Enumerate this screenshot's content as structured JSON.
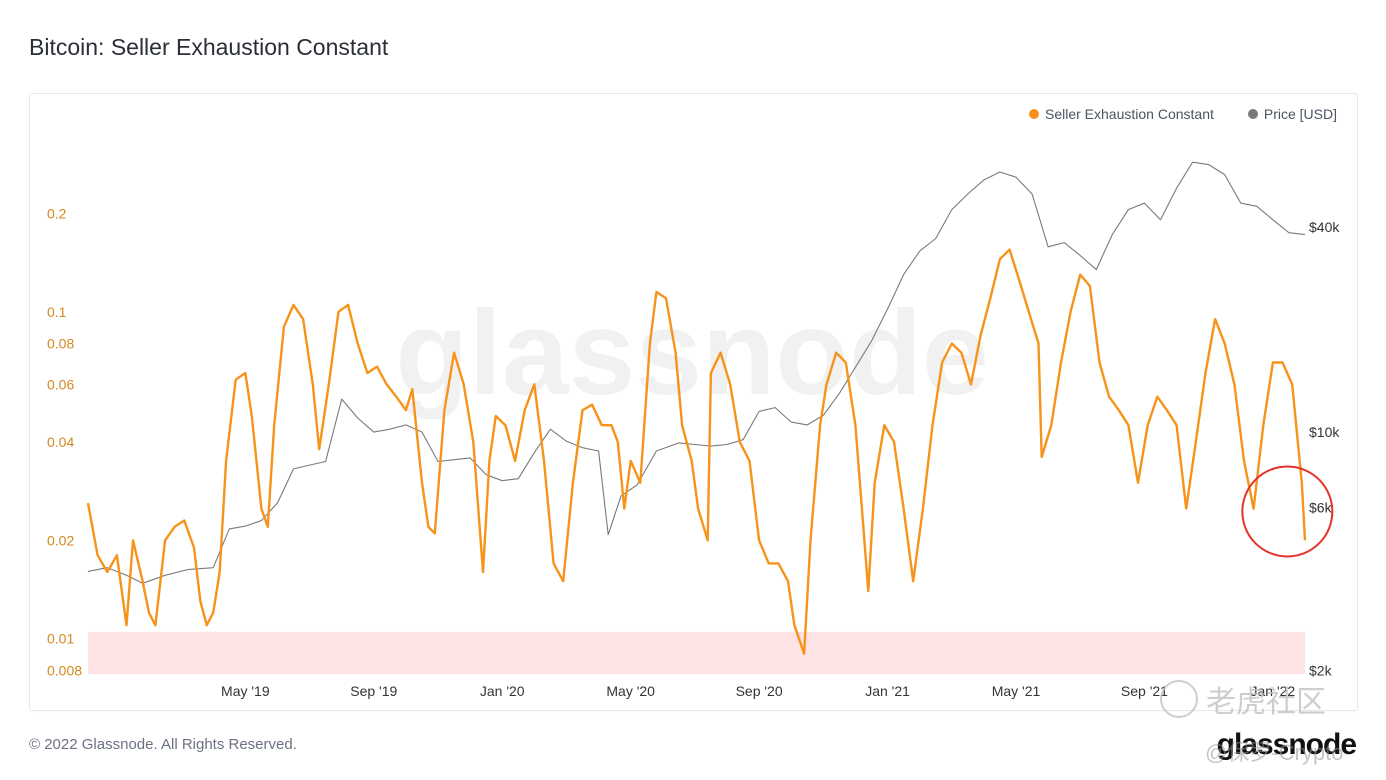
{
  "page": {
    "title": "Bitcoin: Seller Exhaustion Constant",
    "copyright": "© 2022 Glassnode. All Rights Reserved.",
    "brand": "glassnode",
    "watermark_text": "老虎社区",
    "handle_text": "@保罗-Crypto"
  },
  "legend": [
    {
      "label": "Seller Exhaustion Constant",
      "color": "#f7931a"
    },
    {
      "label": "Price [USD]",
      "color": "#7a7a7a"
    }
  ],
  "chart_data": {
    "type": "line",
    "title": "Bitcoin: Seller Exhaustion Constant",
    "x_tick_labels": [
      "May '19",
      "Sep '19",
      "Jan '20",
      "May '20",
      "Sep '20",
      "Jan '21",
      "May '21",
      "Sep '21",
      "Jan '22"
    ],
    "x_tick_months": [
      4,
      8,
      12,
      16,
      20,
      24,
      28,
      32,
      36
    ],
    "x_range_months": [
      -0.9,
      37.0
    ],
    "left_axis": {
      "scale": "log",
      "tick_labels": [
        "0.2",
        "0.1",
        "0.08",
        "0.06",
        "0.04",
        "0.02",
        "0.01",
        "0.008"
      ],
      "tick_values": [
        0.2,
        0.1,
        0.08,
        0.06,
        0.04,
        0.02,
        0.01,
        0.008
      ],
      "range": [
        0.0078,
        0.35
      ],
      "color": "#d4891e"
    },
    "right_axis": {
      "scale": "log",
      "tick_labels": [
        "$40k",
        "$10k",
        "$6k",
        "$2k"
      ],
      "tick_values": [
        40000,
        10000,
        6000,
        2000
      ],
      "range": [
        1950,
        75000
      ],
      "color": "#333333"
    },
    "watermark_text": "glassnode",
    "highlight_band": {
      "from": 0.0078,
      "to": 0.0105,
      "color": "#fde3e3"
    },
    "annotation": {
      "type": "circle",
      "x_month": 36.45,
      "y_value": 0.0245,
      "color": "#e5332a"
    },
    "series": [
      {
        "name": "Seller Exhaustion Constant",
        "axis": "left",
        "color": "#f7931a",
        "points": [
          [
            -0.9,
            0.026
          ],
          [
            -0.6,
            0.018
          ],
          [
            -0.3,
            0.016
          ],
          [
            0.0,
            0.018
          ],
          [
            0.3,
            0.011
          ],
          [
            0.5,
            0.02
          ],
          [
            0.8,
            0.015
          ],
          [
            1.0,
            0.012
          ],
          [
            1.2,
            0.011
          ],
          [
            1.5,
            0.02
          ],
          [
            1.8,
            0.022
          ],
          [
            2.1,
            0.023
          ],
          [
            2.4,
            0.019
          ],
          [
            2.6,
            0.013
          ],
          [
            2.8,
            0.011
          ],
          [
            3.0,
            0.012
          ],
          [
            3.2,
            0.016
          ],
          [
            3.4,
            0.035
          ],
          [
            3.7,
            0.062
          ],
          [
            4.0,
            0.065
          ],
          [
            4.2,
            0.048
          ],
          [
            4.5,
            0.025
          ],
          [
            4.7,
            0.022
          ],
          [
            4.9,
            0.045
          ],
          [
            5.2,
            0.09
          ],
          [
            5.5,
            0.105
          ],
          [
            5.8,
            0.095
          ],
          [
            6.1,
            0.06
          ],
          [
            6.3,
            0.038
          ],
          [
            6.6,
            0.06
          ],
          [
            6.9,
            0.1
          ],
          [
            7.2,
            0.105
          ],
          [
            7.5,
            0.08
          ],
          [
            7.8,
            0.065
          ],
          [
            8.1,
            0.068
          ],
          [
            8.4,
            0.06
          ],
          [
            8.7,
            0.055
          ],
          [
            9.0,
            0.05
          ],
          [
            9.2,
            0.058
          ],
          [
            9.5,
            0.03
          ],
          [
            9.7,
            0.022
          ],
          [
            9.9,
            0.021
          ],
          [
            10.2,
            0.05
          ],
          [
            10.5,
            0.075
          ],
          [
            10.8,
            0.06
          ],
          [
            11.1,
            0.04
          ],
          [
            11.4,
            0.016
          ],
          [
            11.6,
            0.035
          ],
          [
            11.8,
            0.048
          ],
          [
            12.1,
            0.045
          ],
          [
            12.4,
            0.035
          ],
          [
            12.7,
            0.05
          ],
          [
            13.0,
            0.06
          ],
          [
            13.3,
            0.035
          ],
          [
            13.6,
            0.017
          ],
          [
            13.9,
            0.015
          ],
          [
            14.2,
            0.03
          ],
          [
            14.5,
            0.05
          ],
          [
            14.8,
            0.052
          ],
          [
            15.1,
            0.045
          ],
          [
            15.4,
            0.045
          ],
          [
            15.6,
            0.04
          ],
          [
            15.8,
            0.025
          ],
          [
            16.0,
            0.035
          ],
          [
            16.3,
            0.03
          ],
          [
            16.6,
            0.08
          ],
          [
            16.8,
            0.115
          ],
          [
            17.1,
            0.11
          ],
          [
            17.4,
            0.075
          ],
          [
            17.6,
            0.045
          ],
          [
            17.9,
            0.035
          ],
          [
            18.1,
            0.025
          ],
          [
            18.4,
            0.02
          ],
          [
            18.5,
            0.065
          ],
          [
            18.8,
            0.075
          ],
          [
            19.1,
            0.06
          ],
          [
            19.4,
            0.04
          ],
          [
            19.7,
            0.035
          ],
          [
            20.0,
            0.02
          ],
          [
            20.3,
            0.017
          ],
          [
            20.6,
            0.017
          ],
          [
            20.9,
            0.015
          ],
          [
            21.1,
            0.011
          ],
          [
            21.4,
            0.009
          ],
          [
            21.6,
            0.02
          ],
          [
            21.9,
            0.045
          ],
          [
            22.1,
            0.06
          ],
          [
            22.4,
            0.075
          ],
          [
            22.7,
            0.07
          ],
          [
            23.0,
            0.045
          ],
          [
            23.2,
            0.025
          ],
          [
            23.4,
            0.014
          ],
          [
            23.6,
            0.03
          ],
          [
            23.9,
            0.045
          ],
          [
            24.2,
            0.04
          ],
          [
            24.5,
            0.025
          ],
          [
            24.8,
            0.015
          ],
          [
            25.1,
            0.025
          ],
          [
            25.4,
            0.045
          ],
          [
            25.7,
            0.07
          ],
          [
            26.0,
            0.08
          ],
          [
            26.3,
            0.075
          ],
          [
            26.6,
            0.06
          ],
          [
            26.9,
            0.085
          ],
          [
            27.2,
            0.11
          ],
          [
            27.5,
            0.145
          ],
          [
            27.8,
            0.155
          ],
          [
            28.1,
            0.125
          ],
          [
            28.4,
            0.1
          ],
          [
            28.7,
            0.08
          ],
          [
            28.8,
            0.036
          ],
          [
            29.1,
            0.045
          ],
          [
            29.4,
            0.07
          ],
          [
            29.7,
            0.1
          ],
          [
            30.0,
            0.13
          ],
          [
            30.3,
            0.12
          ],
          [
            30.6,
            0.07
          ],
          [
            30.9,
            0.055
          ],
          [
            31.2,
            0.05
          ],
          [
            31.5,
            0.045
          ],
          [
            31.8,
            0.03
          ],
          [
            32.1,
            0.045
          ],
          [
            32.4,
            0.055
          ],
          [
            32.7,
            0.05
          ],
          [
            33.0,
            0.045
          ],
          [
            33.3,
            0.025
          ],
          [
            33.6,
            0.04
          ],
          [
            33.9,
            0.065
          ],
          [
            34.2,
            0.095
          ],
          [
            34.5,
            0.08
          ],
          [
            34.8,
            0.06
          ],
          [
            35.1,
            0.035
          ],
          [
            35.4,
            0.025
          ],
          [
            35.7,
            0.045
          ],
          [
            36.0,
            0.07
          ],
          [
            36.3,
            0.07
          ],
          [
            36.6,
            0.06
          ],
          [
            36.9,
            0.03
          ],
          [
            37.0,
            0.02
          ]
        ]
      },
      {
        "name": "Price [USD]",
        "axis": "right",
        "color": "#7a7a7a",
        "points": [
          [
            -0.9,
            3900
          ],
          [
            -0.3,
            4000
          ],
          [
            0.3,
            3800
          ],
          [
            0.8,
            3600
          ],
          [
            1.5,
            3800
          ],
          [
            2.2,
            3950
          ],
          [
            3.0,
            4000
          ],
          [
            3.5,
            5200
          ],
          [
            4.0,
            5300
          ],
          [
            4.5,
            5500
          ],
          [
            5.0,
            6200
          ],
          [
            5.5,
            7800
          ],
          [
            6.0,
            8000
          ],
          [
            6.5,
            8200
          ],
          [
            7.0,
            12500
          ],
          [
            7.5,
            11000
          ],
          [
            8.0,
            10000
          ],
          [
            8.5,
            10200
          ],
          [
            9.0,
            10500
          ],
          [
            9.5,
            10000
          ],
          [
            10.0,
            8200
          ],
          [
            10.5,
            8300
          ],
          [
            11.0,
            8400
          ],
          [
            11.5,
            7500
          ],
          [
            12.0,
            7200
          ],
          [
            12.5,
            7300
          ],
          [
            13.0,
            8700
          ],
          [
            13.5,
            10200
          ],
          [
            14.0,
            9400
          ],
          [
            14.5,
            9000
          ],
          [
            15.0,
            8800
          ],
          [
            15.3,
            5000
          ],
          [
            15.7,
            6500
          ],
          [
            16.2,
            7000
          ],
          [
            16.8,
            8800
          ],
          [
            17.5,
            9300
          ],
          [
            18.0,
            9200
          ],
          [
            18.5,
            9100
          ],
          [
            19.0,
            9200
          ],
          [
            19.5,
            9500
          ],
          [
            20.0,
            11500
          ],
          [
            20.5,
            11800
          ],
          [
            21.0,
            10700
          ],
          [
            21.5,
            10500
          ],
          [
            22.0,
            11200
          ],
          [
            22.5,
            13000
          ],
          [
            23.0,
            15500
          ],
          [
            23.5,
            18500
          ],
          [
            24.0,
            23000
          ],
          [
            24.5,
            29000
          ],
          [
            25.0,
            34000
          ],
          [
            25.5,
            37000
          ],
          [
            26.0,
            45000
          ],
          [
            26.5,
            50000
          ],
          [
            27.0,
            55000
          ],
          [
            27.5,
            58000
          ],
          [
            28.0,
            56000
          ],
          [
            28.5,
            50000
          ],
          [
            29.0,
            35000
          ],
          [
            29.5,
            36000
          ],
          [
            30.0,
            33000
          ],
          [
            30.5,
            30000
          ],
          [
            31.0,
            38000
          ],
          [
            31.5,
            45000
          ],
          [
            32.0,
            47000
          ],
          [
            32.5,
            42000
          ],
          [
            33.0,
            52000
          ],
          [
            33.5,
            62000
          ],
          [
            34.0,
            61000
          ],
          [
            34.5,
            57000
          ],
          [
            35.0,
            47000
          ],
          [
            35.5,
            46000
          ],
          [
            36.0,
            42000
          ],
          [
            36.5,
            38500
          ],
          [
            37.0,
            38000
          ]
        ]
      }
    ]
  }
}
